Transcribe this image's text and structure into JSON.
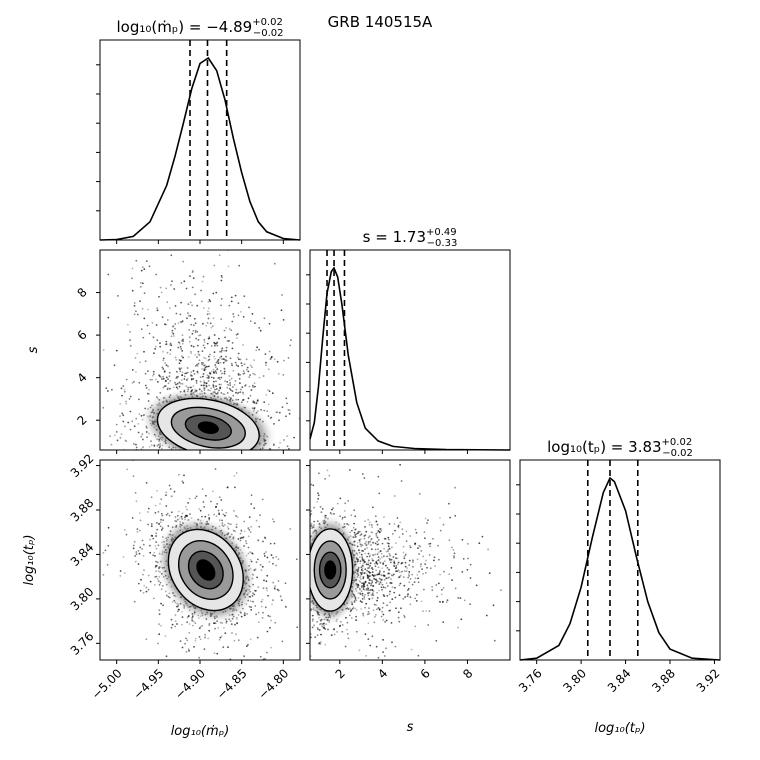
{
  "figure_title": "GRB 140515A",
  "chart_data": {
    "type": "corner",
    "parameters": [
      {
        "name": "log10_mdot",
        "label": "log₁₀(ṁₚ)",
        "range": [
          -5.02,
          -4.78
        ],
        "ticks": [
          -5.0,
          -4.95,
          -4.9,
          -4.85,
          -4.8
        ],
        "tick_labels": [
          "−5.00",
          "−4.95",
          "−4.90",
          "−4.85",
          "−4.80"
        ],
        "median": -4.89,
        "plus": 0.02,
        "minus": 0.02,
        "quantiles": [
          -4.912,
          -4.891,
          -4.868
        ]
      },
      {
        "name": "s",
        "label": "s",
        "range": [
          0.6,
          10.0
        ],
        "ticks": [
          2,
          4,
          6,
          8
        ],
        "tick_labels": [
          "2",
          "4",
          "6",
          "8"
        ],
        "median": 1.73,
        "plus": 0.49,
        "minus": 0.33,
        "quantiles": [
          1.4,
          1.73,
          2.22
        ]
      },
      {
        "name": "log10_tp",
        "label": "log₁₀(tₚ)",
        "range": [
          3.745,
          3.925
        ],
        "ticks": [
          3.76,
          3.8,
          3.84,
          3.88,
          3.92
        ],
        "tick_labels": [
          "3.76",
          "3.80",
          "3.84",
          "3.88",
          "3.92"
        ],
        "median": 3.83,
        "plus": 0.02,
        "minus": 0.02,
        "quantiles": [
          3.806,
          3.826,
          3.851
        ]
      }
    ],
    "titles": [
      {
        "lead": "log₁₀(ṁₚ) = −4.89",
        "sup": "+0.02",
        "sub": "−0.02"
      },
      {
        "lead": "s = 1.73",
        "sup": "+0.49",
        "sub": "−0.33"
      },
      {
        "lead": "log₁₀(tₚ) = 3.83",
        "sup": "+0.02",
        "sub": "−0.02"
      }
    ],
    "marginal_1d": [
      {
        "x": [
          -5.02,
          -5.0,
          -4.98,
          -4.96,
          -4.94,
          -4.93,
          -4.92,
          -4.91,
          -4.9,
          -4.89,
          -4.88,
          -4.87,
          -4.86,
          -4.85,
          -4.84,
          -4.83,
          -4.82,
          -4.8,
          -4.78
        ],
        "y": [
          0,
          0.003,
          0.02,
          0.1,
          0.3,
          0.46,
          0.64,
          0.83,
          0.97,
          1.0,
          0.93,
          0.77,
          0.56,
          0.37,
          0.21,
          0.1,
          0.045,
          0.008,
          0
        ]
      },
      {
        "x": [
          0.6,
          0.8,
          1.0,
          1.2,
          1.4,
          1.6,
          1.73,
          1.9,
          2.1,
          2.4,
          2.8,
          3.2,
          3.8,
          4.5,
          5.5,
          7.0,
          10.0
        ],
        "y": [
          0.06,
          0.15,
          0.35,
          0.62,
          0.86,
          0.98,
          1.0,
          0.95,
          0.8,
          0.52,
          0.26,
          0.12,
          0.05,
          0.02,
          0.008,
          0.003,
          0
        ]
      },
      {
        "x": [
          3.745,
          3.76,
          3.78,
          3.79,
          3.8,
          3.81,
          3.82,
          3.826,
          3.83,
          3.84,
          3.85,
          3.86,
          3.87,
          3.88,
          3.9,
          3.925
        ],
        "y": [
          0,
          0.01,
          0.08,
          0.2,
          0.4,
          0.67,
          0.92,
          1.0,
          0.98,
          0.82,
          0.56,
          0.32,
          0.15,
          0.06,
          0.01,
          0
        ]
      }
    ],
    "joint_2d": [
      {
        "x_param": 0,
        "y_param": 1,
        "peak": [
          -4.89,
          1.65
        ],
        "contours": [
          [
            0.012,
            0.25
          ],
          [
            0.028,
            0.55
          ],
          [
            0.045,
            0.9
          ],
          [
            0.062,
            1.3
          ]
        ],
        "angle_deg": 12
      },
      {
        "x_param": 0,
        "y_param": 2,
        "peak": [
          -4.893,
          3.826
        ],
        "contours": [
          [
            0.009,
            0.01
          ],
          [
            0.019,
            0.018
          ],
          [
            0.03,
            0.028
          ],
          [
            0.041,
            0.039
          ]
        ],
        "angle_deg": -35
      },
      {
        "x_param": 1,
        "y_param": 2,
        "peak": [
          1.55,
          3.826
        ],
        "contours": [
          [
            0.25,
            0.008
          ],
          [
            0.5,
            0.016
          ],
          [
            0.75,
            0.026
          ],
          [
            1.05,
            0.037
          ]
        ],
        "angle_deg": 0
      }
    ]
  }
}
